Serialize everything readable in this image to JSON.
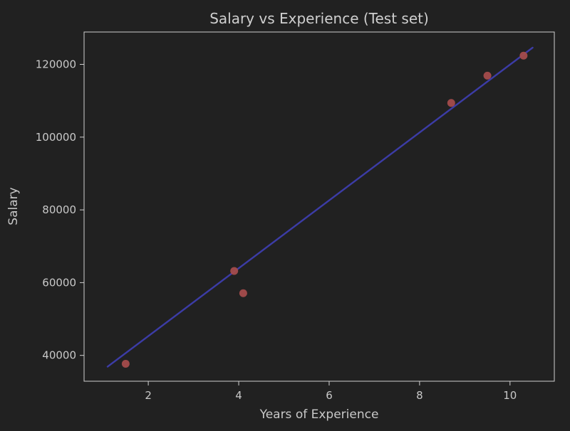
{
  "chart_data": {
    "type": "scatter",
    "title": "Salary vs Experience (Test set)",
    "xlabel": "Years of Experience",
    "ylabel": "Salary",
    "xlim": [
      0.58,
      10.98
    ],
    "ylim": [
      32900,
      128900
    ],
    "xticks": [
      2,
      4,
      6,
      8,
      10
    ],
    "yticks": [
      40000,
      60000,
      80000,
      100000,
      120000
    ],
    "grid": false,
    "background_color": "#212121",
    "text_color": "#cfcfcf",
    "scatter_color": "#a44c4c",
    "line_color": "#3c3ca6",
    "series": [
      {
        "type": "scatter",
        "x": [
          1.5,
          3.9,
          4.1,
          8.7,
          9.5,
          10.3
        ],
        "y": [
          37700,
          63200,
          57100,
          109400,
          116900,
          122400
        ]
      },
      {
        "type": "line",
        "x": [
          1.1,
          10.5
        ],
        "y": [
          36900,
          124600
        ]
      }
    ]
  }
}
